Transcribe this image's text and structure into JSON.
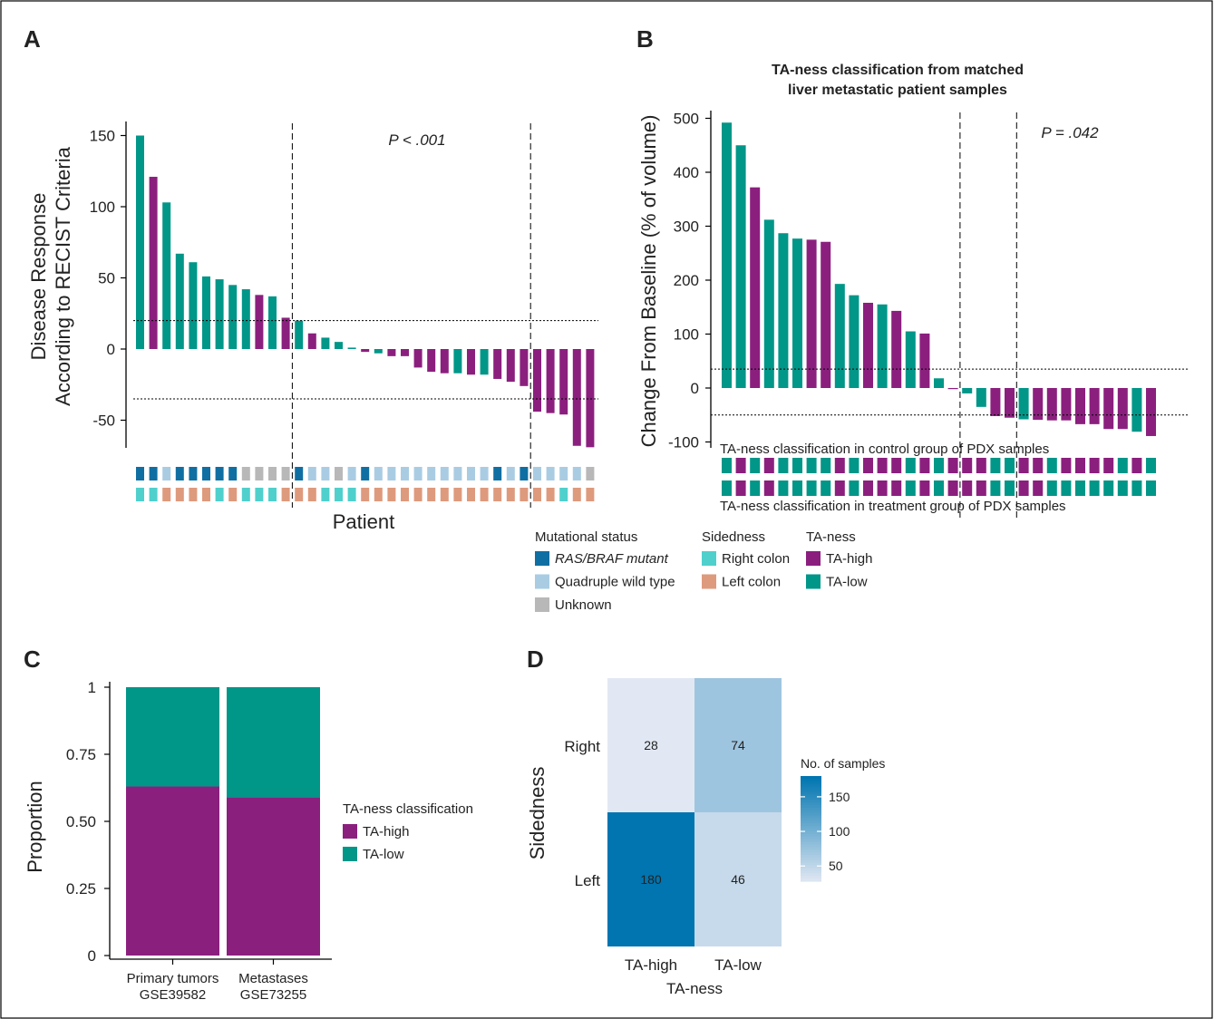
{
  "colors": {
    "ta_high": "#8b1f7e",
    "ta_low": "#009688",
    "ras_braf": "#0f6fa3",
    "quad_wt": "#a9cce3",
    "unknown": "#b8b8b8",
    "right_colon": "#4fd0cc",
    "left_colon": "#de9a7d"
  },
  "panels": {
    "a": "A",
    "b": "B",
    "c": "C",
    "d": "D"
  },
  "chart_data": [
    {
      "panel": "A",
      "type": "bar",
      "ylabel_line1": "Disease Response",
      "ylabel_line2": "According to RECIST Criteria",
      "xlabel": "Patient",
      "ylim": [
        -70,
        160
      ],
      "yticks": [
        150,
        100,
        50,
        0,
        -50
      ],
      "annotation": "P < .001",
      "hlines": [
        20,
        -35
      ],
      "vlines_after_index": [
        11,
        29
      ],
      "values": [
        150,
        121,
        103,
        67,
        61,
        51,
        49,
        45,
        42,
        38,
        37,
        22,
        20,
        11,
        8,
        5,
        1,
        -2,
        -3,
        -5,
        -5,
        -13,
        -16,
        -17,
        -17,
        -18,
        -18,
        -21,
        -23,
        -26,
        -44,
        -45,
        -46,
        -68,
        -69
      ],
      "ta_ness": [
        "L",
        "H",
        "L",
        "L",
        "L",
        "L",
        "L",
        "L",
        "L",
        "H",
        "L",
        "H",
        "L",
        "H",
        "L",
        "L",
        "L",
        "H",
        "L",
        "H",
        "H",
        "H",
        "H",
        "H",
        "L",
        "H",
        "L",
        "H",
        "H",
        "H",
        "H",
        "H",
        "H",
        "H",
        "H"
      ],
      "mutational_status": [
        "R",
        "R",
        "Q",
        "R",
        "R",
        "R",
        "R",
        "R",
        "U",
        "U",
        "U",
        "U",
        "R",
        "Q",
        "Q",
        "U",
        "Q",
        "R",
        "Q",
        "Q",
        "Q",
        "Q",
        "Q",
        "Q",
        "Q",
        "Q",
        "Q",
        "R",
        "Q",
        "R",
        "Q",
        "Q",
        "Q",
        "Q",
        "U"
      ],
      "sidedness": [
        "RC",
        "RC",
        "LC",
        "LC",
        "LC",
        "LC",
        "RC",
        "LC",
        "RC",
        "RC",
        "RC",
        "LC",
        "LC",
        "LC",
        "RC",
        "RC",
        "RC",
        "LC",
        "LC",
        "LC",
        "LC",
        "LC",
        "LC",
        "LC",
        "LC",
        "LC",
        "LC",
        "LC",
        "LC",
        "LC",
        "LC",
        "LC",
        "RC",
        "LC",
        "LC"
      ]
    },
    {
      "panel": "B",
      "type": "bar",
      "title_line1": "TA-ness classification from matched",
      "title_line2": "liver metastatic patient samples",
      "ylabel": "Change From Baseline (% of volume)",
      "ylim": [
        -100,
        520
      ],
      "yticks": [
        500,
        400,
        300,
        200,
        100,
        0,
        -100
      ],
      "annotation": "P = .042",
      "hlines": [
        35,
        -50
      ],
      "vlines_after_index": [
        16,
        20
      ],
      "values": [
        492,
        450,
        372,
        312,
        287,
        277,
        275,
        271,
        193,
        172,
        158,
        155,
        143,
        105,
        101,
        18,
        -2,
        -10,
        -35,
        -52,
        -55,
        -58,
        -59,
        -60,
        -60,
        -67,
        -67,
        -76,
        -76,
        -81,
        -89
      ],
      "ta_ness": [
        "L",
        "L",
        "H",
        "L",
        "L",
        "L",
        "H",
        "H",
        "L",
        "L",
        "H",
        "L",
        "H",
        "L",
        "H",
        "L",
        "H",
        "L",
        "L",
        "H",
        "H",
        "L",
        "H",
        "H",
        "H",
        "H",
        "H",
        "H",
        "H",
        "L",
        "H"
      ],
      "control_group_label": "TA-ness classification in control group of PDX samples",
      "treatment_group_label": "TA-ness classification in treatment group of PDX samples",
      "control_ta_ness": [
        "L",
        "H",
        "L",
        "H",
        "L",
        "L",
        "L",
        "L",
        "H",
        "L",
        "H",
        "H",
        "H",
        "L",
        "H",
        "L",
        "H",
        "H",
        "H",
        "L",
        "L",
        "H",
        "H",
        "L",
        "H",
        "H",
        "H",
        "H",
        "L",
        "H",
        "L"
      ],
      "treatment_ta_ness": [
        "L",
        "H",
        "L",
        "H",
        "L",
        "L",
        "L",
        "L",
        "H",
        "L",
        "H",
        "H",
        "H",
        "L",
        "H",
        "L",
        "H",
        "H",
        "H",
        "L",
        "L",
        "H",
        "H",
        "L",
        "L",
        "L",
        "L",
        "L",
        "L",
        "L",
        "L"
      ]
    },
    {
      "panel": "C",
      "type": "bar",
      "stacked": true,
      "ylabel": "Proportion",
      "ylim": [
        0,
        1
      ],
      "yticks": [
        "0",
        "0.25",
        "0.50",
        "0.75",
        "1"
      ],
      "categories": [
        {
          "line1": "Primary tumors",
          "line2": "GSE39582"
        },
        {
          "line1": "Metastases",
          "line2": "GSE73255"
        }
      ],
      "series": [
        {
          "name": "TA-high",
          "values": [
            0.63,
            0.59
          ]
        },
        {
          "name": "TA-low",
          "values": [
            0.37,
            0.41
          ]
        }
      ],
      "legend_title": "TA-ness classification"
    },
    {
      "panel": "D",
      "type": "heatmap",
      "ylabel": "Sidedness",
      "xlabel": "TA-ness",
      "x_categories": [
        "TA-high",
        "TA-low"
      ],
      "y_categories": [
        "Right",
        "Left"
      ],
      "values": [
        [
          28,
          74
        ],
        [
          180,
          46
        ]
      ],
      "colorbar_title": "No. of samples",
      "colorbar_ticks": [
        150,
        100,
        50
      ],
      "color_range": [
        28,
        180
      ]
    }
  ],
  "legend_a": {
    "mut_title": "Mutational status",
    "mut_items": [
      {
        "label": "RAS/BRAF mutant",
        "color_key": "ras_braf",
        "italic": true
      },
      {
        "label": "Quadruple wild type",
        "color_key": "quad_wt"
      },
      {
        "label": "Unknown",
        "color_key": "unknown"
      }
    ],
    "side_title": "Sidedness",
    "side_items": [
      {
        "label": "Right colon",
        "color_key": "right_colon"
      },
      {
        "label": "Left colon",
        "color_key": "left_colon"
      }
    ],
    "ta_title": "TA-ness",
    "ta_items": [
      {
        "label": "TA-high",
        "color_key": "ta_high"
      },
      {
        "label": "TA-low",
        "color_key": "ta_low"
      }
    ]
  },
  "legend_c_items": [
    {
      "label": "TA-high",
      "color_key": "ta_high"
    },
    {
      "label": "TA-low",
      "color_key": "ta_low"
    }
  ]
}
